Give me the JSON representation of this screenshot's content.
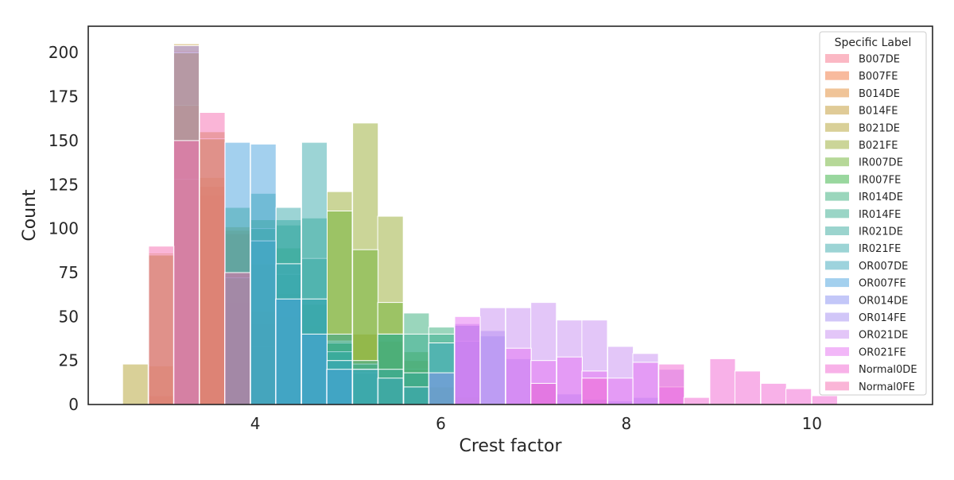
{
  "chart_data": {
    "type": "bar",
    "subtype": "histogram (overlaid, semi-transparent)",
    "xlabel": "Crest factor",
    "ylabel": "Count",
    "xlim": [
      2.2,
      11.3
    ],
    "ylim": [
      0,
      215
    ],
    "x_ticks": [
      4,
      6,
      8,
      10
    ],
    "y_ticks": [
      0,
      25,
      50,
      75,
      100,
      125,
      150,
      175,
      200
    ],
    "grid": false,
    "bin_width": 0.275,
    "legend": {
      "title": "Specific Label",
      "placement": "top-right"
    },
    "series": [
      {
        "name": "B007DE",
        "color": "#f77189",
        "bins": [
          [
            3.12,
            201
          ],
          [
            3.4,
            119
          ],
          [
            3.67,
            58
          ],
          [
            3.95,
            29
          ],
          [
            4.22,
            12
          ],
          [
            4.5,
            2
          ]
        ]
      },
      {
        "name": "B007FE",
        "color": "#f2763b",
        "bins": [
          [
            2.85,
            5
          ],
          [
            3.12,
            170
          ],
          [
            3.4,
            124
          ],
          [
            3.67,
            97
          ],
          [
            3.95,
            46
          ],
          [
            4.22,
            20
          ],
          [
            4.5,
            7
          ],
          [
            4.77,
            2
          ]
        ]
      },
      {
        "name": "B014DE",
        "color": "#e18a31",
        "bins": [
          [
            2.85,
            22
          ],
          [
            3.12,
            128
          ],
          [
            3.4,
            129
          ],
          [
            3.67,
            75
          ],
          [
            3.95,
            33
          ],
          [
            4.22,
            21
          ],
          [
            4.5,
            10
          ]
        ]
      },
      {
        "name": "B014FE",
        "color": "#c29830",
        "bins": [
          [
            2.85,
            86
          ],
          [
            3.12,
            205
          ],
          [
            3.4,
            155
          ],
          [
            3.67,
            99
          ],
          [
            3.95,
            53
          ],
          [
            4.22,
            50
          ],
          [
            4.5,
            45
          ],
          [
            4.77,
            23
          ],
          [
            5.05,
            17
          ],
          [
            5.32,
            15
          ],
          [
            5.6,
            12
          ]
        ]
      },
      {
        "name": "B021DE",
        "color": "#b4a231",
        "bins": [
          [
            2.57,
            23
          ],
          [
            2.85,
            85
          ],
          [
            3.12,
            200
          ],
          [
            3.4,
            151
          ],
          [
            3.67,
            101
          ],
          [
            3.95,
            80
          ],
          [
            4.22,
            63
          ],
          [
            4.5,
            57
          ],
          [
            4.77,
            40
          ],
          [
            5.05,
            40
          ],
          [
            5.32,
            36
          ],
          [
            5.6,
            25
          ],
          [
            5.87,
            10
          ],
          [
            6.15,
            4
          ]
        ]
      },
      {
        "name": "B021FE",
        "color": "#98ab31",
        "bins": [
          [
            4.77,
            121
          ],
          [
            5.05,
            160
          ],
          [
            5.32,
            107
          ],
          [
            5.6,
            20
          ]
        ]
      },
      {
        "name": "IR007DE",
        "color": "#6db131",
        "bins": [
          [
            4.77,
            110
          ],
          [
            5.05,
            88
          ],
          [
            5.32,
            58
          ],
          [
            5.6,
            30
          ]
        ]
      },
      {
        "name": "IR007FE",
        "color": "#33b03e",
        "bins": [
          [
            3.67,
            72
          ],
          [
            3.95,
            105
          ],
          [
            4.22,
            89
          ],
          [
            4.5,
            57
          ],
          [
            4.77,
            36
          ]
        ]
      },
      {
        "name": "IR014DE",
        "color": "#35ae7a",
        "bins": [
          [
            3.67,
            112
          ],
          [
            3.95,
            100
          ],
          [
            4.22,
            74
          ],
          [
            4.5,
            60
          ],
          [
            4.77,
            30
          ],
          [
            5.05,
            18
          ],
          [
            5.32,
            40
          ],
          [
            5.6,
            52
          ],
          [
            5.87,
            44
          ]
        ]
      },
      {
        "name": "IR014FE",
        "color": "#36ac8e",
        "bins": [
          [
            4.22,
            102
          ],
          [
            4.5,
            106
          ],
          [
            4.77,
            35
          ],
          [
            5.05,
            23
          ],
          [
            5.32,
            40
          ],
          [
            5.6,
            40
          ],
          [
            5.87,
            40
          ]
        ]
      },
      {
        "name": "IR021DE",
        "color": "#38aa9d",
        "bins": [
          [
            3.95,
            120
          ],
          [
            4.22,
            105
          ],
          [
            4.5,
            83
          ],
          [
            4.77,
            30
          ],
          [
            5.05,
            25
          ],
          [
            5.32,
            20
          ],
          [
            5.6,
            18
          ]
        ]
      },
      {
        "name": "IR021FE",
        "color": "#39a9ab",
        "bins": [
          [
            4.22,
            112
          ],
          [
            4.5,
            149
          ],
          [
            4.77,
            40
          ],
          [
            5.05,
            20
          ]
        ]
      },
      {
        "name": "OR007DE",
        "color": "#3ba7bc",
        "bins": [
          [
            3.95,
            93
          ],
          [
            4.22,
            80
          ],
          [
            4.5,
            60
          ],
          [
            4.77,
            25
          ],
          [
            5.05,
            20
          ],
          [
            5.32,
            15
          ],
          [
            5.6,
            10
          ],
          [
            5.87,
            35
          ],
          [
            6.15,
            45
          ]
        ]
      },
      {
        "name": "OR007FE",
        "color": "#47a1dd",
        "bins": [
          [
            3.67,
            149
          ],
          [
            3.95,
            148
          ],
          [
            4.22,
            60
          ],
          [
            4.5,
            40
          ],
          [
            4.77,
            20
          ]
        ]
      },
      {
        "name": "OR014DE",
        "color": "#8890f2",
        "bins": [
          [
            5.87,
            18
          ],
          [
            6.15,
            36
          ],
          [
            6.42,
            39
          ],
          [
            6.7,
            26
          ],
          [
            6.97,
            12
          ],
          [
            7.25,
            6
          ],
          [
            7.52,
            3
          ],
          [
            7.8,
            2
          ],
          [
            8.07,
            4
          ]
        ]
      },
      {
        "name": "OR014FE",
        "color": "#a38df2",
        "bins": [
          [
            3.12,
            204
          ],
          [
            6.15,
            45
          ],
          [
            6.42,
            42
          ]
        ]
      },
      {
        "name": "OR021DE",
        "color": "#c88df2",
        "bins": [
          [
            6.15,
            46
          ],
          [
            6.42,
            55
          ],
          [
            6.7,
            55
          ],
          [
            6.97,
            58
          ],
          [
            7.25,
            48
          ],
          [
            7.52,
            48
          ],
          [
            7.8,
            33
          ],
          [
            8.07,
            29
          ],
          [
            8.35,
            20
          ]
        ]
      },
      {
        "name": "OR021FE",
        "color": "#e66ff2",
        "bins": [
          [
            6.15,
            50
          ],
          [
            6.7,
            32
          ],
          [
            6.97,
            25
          ],
          [
            7.25,
            27
          ],
          [
            7.52,
            19
          ],
          [
            7.8,
            15
          ],
          [
            8.07,
            24
          ],
          [
            8.35,
            10
          ]
        ]
      },
      {
        "name": "Normal0DE",
        "color": "#f264d2",
        "bins": [
          [
            6.97,
            12
          ],
          [
            7.52,
            15
          ],
          [
            8.35,
            23
          ],
          [
            8.62,
            4
          ],
          [
            8.9,
            26
          ],
          [
            9.17,
            19
          ],
          [
            9.45,
            12
          ],
          [
            9.72,
            9
          ],
          [
            10.0,
            5
          ]
        ]
      },
      {
        "name": "Normal0FE",
        "color": "#f66bb0",
        "bins": [
          [
            2.85,
            90
          ],
          [
            3.12,
            150
          ],
          [
            3.4,
            166
          ],
          [
            3.67,
            75
          ]
        ]
      }
    ]
  }
}
